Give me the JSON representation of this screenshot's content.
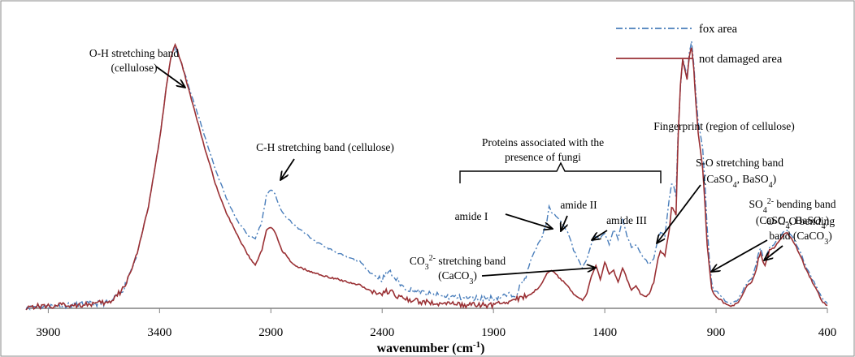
{
  "chart_data": {
    "type": "line",
    "title": "",
    "xlabel": "wavenumber (cm-1)",
    "xlabel_parts": {
      "main": "wavenumber (cm",
      "sup": "-1",
      "close": ")"
    },
    "ylabel": "",
    "xlim": [
      4000,
      400
    ],
    "x_reversed": true,
    "y_axis_visible": false,
    "x_ticks": [
      3900,
      3400,
      2900,
      2400,
      1900,
      1400,
      900,
      400
    ],
    "legend_position": "top-right",
    "series": [
      {
        "name": "fox area",
        "color": "#4a7ebb",
        "dash": "dash-dot",
        "points": [
          [
            4000,
            0.005
          ],
          [
            3900,
            0.008
          ],
          [
            3700,
            0.015
          ],
          [
            3620,
            0.02
          ],
          [
            3560,
            0.07
          ],
          [
            3500,
            0.19
          ],
          [
            3450,
            0.35
          ],
          [
            3400,
            0.58
          ],
          [
            3370,
            0.76
          ],
          [
            3350,
            0.86
          ],
          [
            3330,
            0.9
          ],
          [
            3300,
            0.84
          ],
          [
            3250,
            0.72
          ],
          [
            3200,
            0.6
          ],
          [
            3150,
            0.48
          ],
          [
            3100,
            0.38
          ],
          [
            3050,
            0.3
          ],
          [
            3000,
            0.25
          ],
          [
            2970,
            0.24
          ],
          [
            2940,
            0.3
          ],
          [
            2920,
            0.39
          ],
          [
            2900,
            0.41
          ],
          [
            2880,
            0.39
          ],
          [
            2850,
            0.33
          ],
          [
            2800,
            0.29
          ],
          [
            2700,
            0.23
          ],
          [
            2600,
            0.19
          ],
          [
            2500,
            0.16
          ],
          [
            2450,
            0.12
          ],
          [
            2400,
            0.1
          ],
          [
            2370,
            0.13
          ],
          [
            2350,
            0.11
          ],
          [
            2300,
            0.07
          ],
          [
            2200,
            0.05
          ],
          [
            2100,
            0.04
          ],
          [
            2000,
            0.035
          ],
          [
            1900,
            0.035
          ],
          [
            1800,
            0.05
          ],
          [
            1760,
            0.1
          ],
          [
            1730,
            0.17
          ],
          [
            1700,
            0.22
          ],
          [
            1680,
            0.25
          ],
          [
            1660,
            0.3
          ],
          [
            1650,
            0.35
          ],
          [
            1640,
            0.33
          ],
          [
            1620,
            0.32
          ],
          [
            1600,
            0.3
          ],
          [
            1580,
            0.28
          ],
          [
            1560,
            0.25
          ],
          [
            1540,
            0.2
          ],
          [
            1520,
            0.17
          ],
          [
            1500,
            0.14
          ],
          [
            1480,
            0.17
          ],
          [
            1460,
            0.22
          ],
          [
            1440,
            0.25
          ],
          [
            1420,
            0.24
          ],
          [
            1400,
            0.26
          ],
          [
            1380,
            0.22
          ],
          [
            1360,
            0.27
          ],
          [
            1340,
            0.24
          ],
          [
            1320,
            0.31
          ],
          [
            1300,
            0.25
          ],
          [
            1280,
            0.21
          ],
          [
            1260,
            0.22
          ],
          [
            1240,
            0.19
          ],
          [
            1220,
            0.17
          ],
          [
            1200,
            0.15
          ],
          [
            1180,
            0.17
          ],
          [
            1160,
            0.24
          ],
          [
            1150,
            0.26
          ],
          [
            1130,
            0.25
          ],
          [
            1110,
            0.38
          ],
          [
            1100,
            0.43
          ],
          [
            1090,
            0.42
          ],
          [
            1080,
            0.38
          ],
          [
            1070,
            0.62
          ],
          [
            1060,
            0.76
          ],
          [
            1050,
            0.86
          ],
          [
            1040,
            0.83
          ],
          [
            1030,
            0.8
          ],
          [
            1020,
            0.88
          ],
          [
            1010,
            0.92
          ],
          [
            1000,
            0.84
          ],
          [
            990,
            0.73
          ],
          [
            980,
            0.64
          ],
          [
            970,
            0.6
          ],
          [
            960,
            0.55
          ],
          [
            950,
            0.43
          ],
          [
            940,
            0.28
          ],
          [
            930,
            0.17
          ],
          [
            920,
            0.09
          ],
          [
            910,
            0.06
          ],
          [
            900,
            0.06
          ],
          [
            880,
            0.045
          ],
          [
            860,
            0.025
          ],
          [
            840,
            0.015
          ],
          [
            820,
            0.02
          ],
          [
            800,
            0.03
          ],
          [
            780,
            0.06
          ],
          [
            760,
            0.09
          ],
          [
            740,
            0.1
          ],
          [
            720,
            0.15
          ],
          [
            710,
            0.19
          ],
          [
            700,
            0.21
          ],
          [
            690,
            0.18
          ],
          [
            680,
            0.17
          ],
          [
            660,
            0.21
          ],
          [
            640,
            0.22
          ],
          [
            620,
            0.24
          ],
          [
            600,
            0.26
          ],
          [
            580,
            0.27
          ],
          [
            560,
            0.25
          ],
          [
            540,
            0.22
          ],
          [
            520,
            0.19
          ],
          [
            500,
            0.15
          ],
          [
            480,
            0.12
          ],
          [
            460,
            0.09
          ],
          [
            440,
            0.06
          ],
          [
            420,
            0.03
          ],
          [
            400,
            0.015
          ]
        ]
      },
      {
        "name": "not damaged area",
        "color": "#9a3034",
        "dash": "solid",
        "points": [
          [
            4000,
            0.005
          ],
          [
            3900,
            0.008
          ],
          [
            3700,
            0.015
          ],
          [
            3620,
            0.02
          ],
          [
            3560,
            0.07
          ],
          [
            3500,
            0.19
          ],
          [
            3450,
            0.35
          ],
          [
            3400,
            0.58
          ],
          [
            3370,
            0.76
          ],
          [
            3350,
            0.86
          ],
          [
            3330,
            0.91
          ],
          [
            3300,
            0.84
          ],
          [
            3250,
            0.7
          ],
          [
            3200,
            0.56
          ],
          [
            3150,
            0.43
          ],
          [
            3100,
            0.33
          ],
          [
            3050,
            0.25
          ],
          [
            3000,
            0.18
          ],
          [
            2970,
            0.15
          ],
          [
            2940,
            0.2
          ],
          [
            2920,
            0.27
          ],
          [
            2900,
            0.28
          ],
          [
            2880,
            0.26
          ],
          [
            2850,
            0.2
          ],
          [
            2800,
            0.15
          ],
          [
            2700,
            0.12
          ],
          [
            2600,
            0.1
          ],
          [
            2500,
            0.08
          ],
          [
            2450,
            0.06
          ],
          [
            2400,
            0.05
          ],
          [
            2370,
            0.06
          ],
          [
            2350,
            0.05
          ],
          [
            2300,
            0.03
          ],
          [
            2200,
            0.02
          ],
          [
            2100,
            0.015
          ],
          [
            2000,
            0.01
          ],
          [
            1900,
            0.012
          ],
          [
            1800,
            0.03
          ],
          [
            1760,
            0.04
          ],
          [
            1730,
            0.05
          ],
          [
            1700,
            0.07
          ],
          [
            1680,
            0.09
          ],
          [
            1660,
            0.12
          ],
          [
            1640,
            0.13
          ],
          [
            1620,
            0.12
          ],
          [
            1600,
            0.1
          ],
          [
            1580,
            0.09
          ],
          [
            1560,
            0.07
          ],
          [
            1540,
            0.05
          ],
          [
            1520,
            0.04
          ],
          [
            1500,
            0.03
          ],
          [
            1480,
            0.05
          ],
          [
            1460,
            0.11
          ],
          [
            1440,
            0.15
          ],
          [
            1420,
            0.1
          ],
          [
            1400,
            0.16
          ],
          [
            1380,
            0.12
          ],
          [
            1360,
            0.13
          ],
          [
            1340,
            0.09
          ],
          [
            1320,
            0.14
          ],
          [
            1300,
            0.1
          ],
          [
            1280,
            0.06
          ],
          [
            1260,
            0.08
          ],
          [
            1240,
            0.05
          ],
          [
            1220,
            0.04
          ],
          [
            1200,
            0.05
          ],
          [
            1180,
            0.09
          ],
          [
            1160,
            0.17
          ],
          [
            1150,
            0.2
          ],
          [
            1130,
            0.18
          ],
          [
            1110,
            0.27
          ],
          [
            1100,
            0.35
          ],
          [
            1090,
            0.34
          ],
          [
            1080,
            0.32
          ],
          [
            1070,
            0.6
          ],
          [
            1060,
            0.77
          ],
          [
            1050,
            0.86
          ],
          [
            1040,
            0.82
          ],
          [
            1030,
            0.79
          ],
          [
            1020,
            0.87
          ],
          [
            1010,
            0.9
          ],
          [
            1000,
            0.82
          ],
          [
            990,
            0.7
          ],
          [
            980,
            0.6
          ],
          [
            970,
            0.54
          ],
          [
            960,
            0.48
          ],
          [
            950,
            0.36
          ],
          [
            940,
            0.22
          ],
          [
            930,
            0.14
          ],
          [
            920,
            0.07
          ],
          [
            910,
            0.05
          ],
          [
            900,
            0.04
          ],
          [
            880,
            0.03
          ],
          [
            860,
            0.015
          ],
          [
            840,
            0.008
          ],
          [
            820,
            0.012
          ],
          [
            800,
            0.02
          ],
          [
            780,
            0.05
          ],
          [
            760,
            0.08
          ],
          [
            740,
            0.09
          ],
          [
            720,
            0.13
          ],
          [
            710,
            0.17
          ],
          [
            700,
            0.19
          ],
          [
            690,
            0.16
          ],
          [
            680,
            0.15
          ],
          [
            660,
            0.2
          ],
          [
            640,
            0.21
          ],
          [
            620,
            0.23
          ],
          [
            600,
            0.25
          ],
          [
            580,
            0.26
          ],
          [
            560,
            0.24
          ],
          [
            540,
            0.21
          ],
          [
            520,
            0.18
          ],
          [
            500,
            0.14
          ],
          [
            480,
            0.11
          ],
          [
            460,
            0.08
          ],
          [
            440,
            0.05
          ],
          [
            420,
            0.02
          ],
          [
            400,
            0.01
          ]
        ]
      }
    ],
    "annotations": [
      {
        "id": "oh",
        "lines": [
          [
            {
              "t": "O-H stretching band"
            }
          ],
          [
            {
              "t": "(cellulose)"
            }
          ]
        ]
      },
      {
        "id": "ch",
        "lines": [
          [
            {
              "t": "C-H stretching band (cellulose)"
            }
          ]
        ]
      },
      {
        "id": "fp",
        "lines": [
          [
            {
              "t": "Fingerprint (region of cellulose)"
            }
          ]
        ]
      },
      {
        "id": "prot",
        "lines": [
          [
            {
              "t": "Proteins associated with the"
            }
          ],
          [
            {
              "t": "presence of fungi"
            }
          ]
        ]
      },
      {
        "id": "so",
        "lines": [
          [
            {
              "t": "S-O stretching band"
            }
          ],
          [
            {
              "t": "(CaSO"
            },
            {
              "t": "4",
              "s": "sub"
            },
            {
              "t": ", BaSO"
            },
            {
              "t": "4",
              "s": "sub"
            },
            {
              "t": ")"
            }
          ]
        ]
      },
      {
        "id": "so4",
        "lines": [
          [
            {
              "t": "SO"
            },
            {
              "t": "4",
              "s": "sub"
            },
            {
              "t": "2-",
              "s": "sup"
            },
            {
              "t": " bending band"
            }
          ],
          [
            {
              "t": "(CaSO"
            },
            {
              "t": "4",
              "s": "sub"
            },
            {
              "t": ", BaSO"
            },
            {
              "t": "4",
              "s": "sub"
            },
            {
              "t": ")"
            }
          ]
        ]
      },
      {
        "id": "amide1",
        "lines": [
          [
            {
              "t": "amide I"
            }
          ]
        ]
      },
      {
        "id": "amide2",
        "lines": [
          [
            {
              "t": "amide II"
            }
          ]
        ]
      },
      {
        "id": "amide3",
        "lines": [
          [
            {
              "t": "amide III"
            }
          ]
        ]
      },
      {
        "id": "oco",
        "lines": [
          [
            {
              "t": "O-C-O bending"
            }
          ],
          [
            {
              "t": "band (CaCO"
            },
            {
              "t": "3",
              "s": "sub"
            },
            {
              "t": ")"
            }
          ]
        ]
      },
      {
        "id": "co3",
        "lines": [
          [
            {
              "t": "CO"
            },
            {
              "t": "3",
              "s": "sub"
            },
            {
              "t": "2-",
              "s": "sup"
            },
            {
              "t": " stretching band"
            }
          ],
          [
            {
              "t": "(CaCO"
            },
            {
              "t": "3",
              "s": "sub"
            },
            {
              "t": ")"
            }
          ]
        ]
      }
    ]
  }
}
